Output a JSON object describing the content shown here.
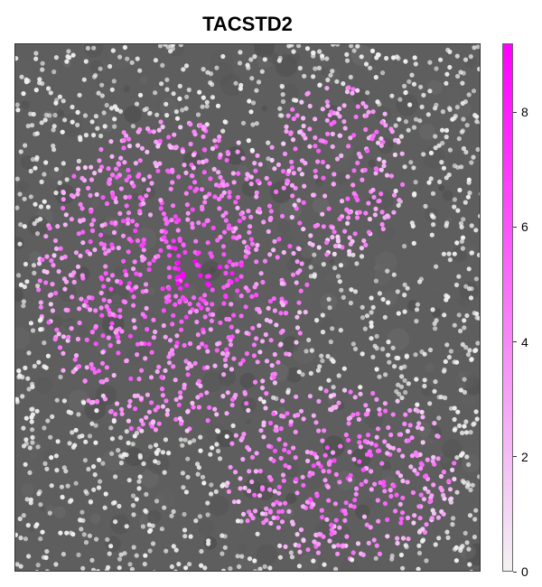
{
  "title": "TACSTD2",
  "colorbar": {
    "min": 0,
    "max": 9.2,
    "ticks": [
      "0",
      "2",
      "4",
      "6",
      "8"
    ],
    "color_low": "#f2f2f2",
    "color_high": "#ff00ff"
  },
  "image": {
    "description_tags": [
      "grayscale-tissue-background",
      "cell-spot-overlay"
    ],
    "background_color": "#5e5e5e",
    "expression_regions": [
      {
        "name": "upper-left-lobe",
        "level": 0.55
      },
      {
        "name": "upper-right-lobe",
        "level": 0.45
      },
      {
        "name": "lower-lobe",
        "level": 0.5
      },
      {
        "name": "central-hotspot",
        "level": 0.85
      }
    ]
  }
}
